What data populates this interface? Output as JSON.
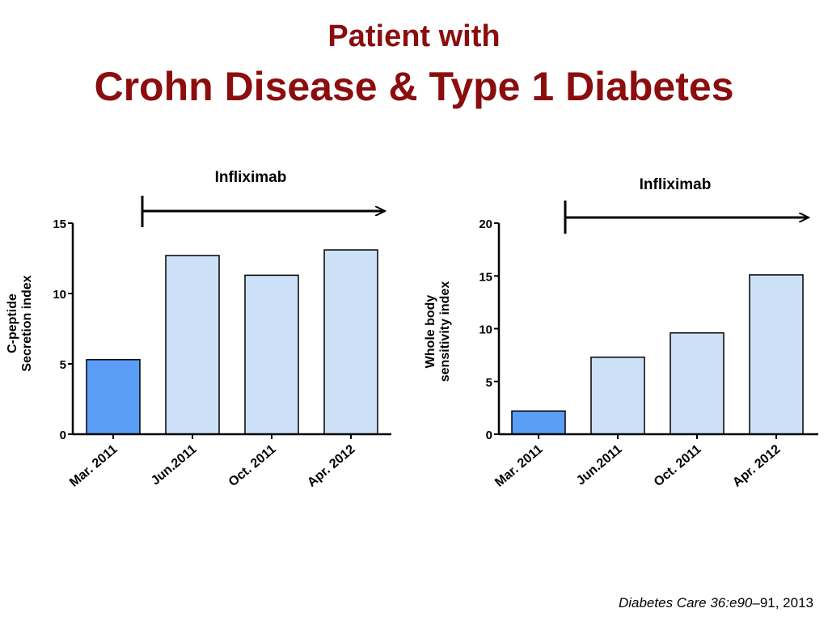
{
  "slide": {
    "title_line1": "Patient with",
    "title_line2": "Crohn Disease & Type 1 Diabetes"
  },
  "citation": {
    "journal_italic": "Diabetes Care 36:e90",
    "rest": "–91, 2013"
  },
  "colors": {
    "title": "#8b0d0d",
    "highlight_bar": "#5a9ef7",
    "regular_bar": "#cce0f7",
    "axis": "#000000"
  },
  "chart_data": [
    {
      "type": "bar",
      "categories": [
        "Mar. 2011",
        "Jun.2011",
        "Oct. 2011",
        "Apr. 2012"
      ],
      "values": [
        5.3,
        12.7,
        11.3,
        13.1
      ],
      "highlight_index": 0,
      "ylabel": [
        "C-peptide",
        "Secretion index"
      ],
      "ylim": [
        0,
        15
      ],
      "yticks": [
        0,
        5,
        10,
        15
      ],
      "annotation": "Infliximab",
      "arrow_from_category": 1
    },
    {
      "type": "bar",
      "categories": [
        "Mar. 2011",
        "Jun.2011",
        "Oct. 2011",
        "Apr. 2012"
      ],
      "values": [
        2.2,
        7.3,
        9.6,
        15.1
      ],
      "highlight_index": 0,
      "ylabel": [
        "Whole body",
        "sensitivity index"
      ],
      "ylim": [
        0,
        20
      ],
      "yticks": [
        0,
        5,
        10,
        15,
        20
      ],
      "annotation": "Infliximab",
      "arrow_from_category": 1
    }
  ]
}
